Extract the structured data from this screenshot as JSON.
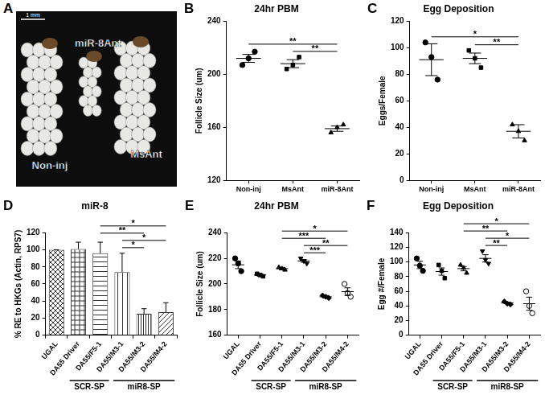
{
  "image_panel": {
    "panel": "A",
    "scale_bar": "1 mm",
    "labels": [
      "miR-8Ant",
      "Non-inj",
      "MsAnt"
    ]
  },
  "chart_data": [
    {
      "panel": "B",
      "type": "dot",
      "title": "24hr PBM",
      "y_label": "Follicle Size (um)",
      "color": "#000000",
      "categories": [
        "Non-inj",
        "MsAnt",
        "miR-8Ant"
      ],
      "series": [
        {
          "marker": "circle",
          "points": [
            207,
            212,
            217
          ],
          "value": 212,
          "error": 3
        },
        {
          "marker": "square",
          "points": [
            204,
            207,
            213
          ],
          "value": 208,
          "error": 3
        },
        {
          "marker": "triangle",
          "points": [
            156,
            160,
            162
          ],
          "value": 159,
          "error": 2
        }
      ],
      "annotations": [
        {
          "from": 0,
          "to": 2,
          "text": "**"
        },
        {
          "from": 1,
          "to": 2,
          "text": "**"
        }
      ],
      "ylim": [
        120,
        240
      ],
      "yticks": [
        120,
        160,
        200,
        240
      ],
      "grid": false
    },
    {
      "panel": "C",
      "type": "dot",
      "title": "Egg Deposition",
      "y_label": "Eggs/Female",
      "color": "#000000",
      "categories": [
        "Non-inj",
        "MsAnt",
        "miR-8Ant"
      ],
      "series": [
        {
          "marker": "circle",
          "points": [
            104,
            93,
            76
          ],
          "value": 91,
          "error": 12
        },
        {
          "marker": "square",
          "points": [
            98,
            92,
            85
          ],
          "value": 92,
          "error": 4
        },
        {
          "marker": "triangle",
          "points": [
            42,
            37,
            30
          ],
          "value": 37,
          "error": 5
        }
      ],
      "annotations": [
        {
          "from": 0,
          "to": 2,
          "text": "*"
        },
        {
          "from": 1,
          "to": 2,
          "text": "**"
        }
      ],
      "ylim": [
        0,
        120
      ],
      "yticks": [
        0,
        20,
        40,
        60,
        80,
        100,
        120
      ],
      "grid": false
    },
    {
      "panel": "D",
      "type": "bar",
      "title": "miR-8",
      "y_label": "% RE to HKGs (Actin, RPS7)",
      "categories": [
        "UGAL",
        "DA55 Driver",
        "DA55/F5-1",
        "DA55/M3-1",
        "DA55/M3-2",
        "DA55/M4-2"
      ],
      "values": [
        100,
        101,
        96,
        74,
        25,
        27
      ],
      "errors": [
        0,
        8,
        13,
        22,
        6,
        11
      ],
      "colors": [
        "#333333",
        "#333333",
        "#333333",
        "#333333",
        "#333333",
        "#333333"
      ],
      "groups": [
        {
          "label": "SCR-SP",
          "from": 1,
          "to": 2
        },
        {
          "label": "miR8-SP",
          "from": 3,
          "to": 5
        }
      ],
      "annotations": [
        {
          "from": 2,
          "to": 5,
          "text": "*"
        },
        {
          "from": 2,
          "to": 4,
          "text": "**"
        },
        {
          "from": 3,
          "to": 5,
          "text": "*"
        },
        {
          "from": 3,
          "to": 4,
          "text": "*"
        }
      ],
      "ylim": [
        0,
        120
      ],
      "yticks": [
        0,
        20,
        40,
        60,
        80,
        100,
        120
      ],
      "grid": false
    },
    {
      "panel": "E",
      "type": "dot",
      "title": "24hr PBM",
      "y_label": "Follicle Size (um)",
      "color": "#000000",
      "categories": [
        "UGAL",
        "DA55 Driver",
        "DA55/F5-1",
        "DA55/M3-1",
        "DA55/M3-2",
        "DA55/M4-2"
      ],
      "series": [
        {
          "marker": "circle",
          "points": [
            220,
            216,
            210
          ],
          "value": 215,
          "error": 3
        },
        {
          "marker": "square",
          "points": [
            208,
            207,
            206
          ],
          "value": 207,
          "error": 1
        },
        {
          "marker": "triangle",
          "points": [
            213,
            212,
            211
          ],
          "value": 212,
          "error": 1
        },
        {
          "marker": "triangle-down",
          "points": [
            220,
            218,
            216
          ],
          "value": 218,
          "error": 1
        },
        {
          "marker": "diamond",
          "points": [
            191,
            190,
            189
          ],
          "value": 190,
          "error": 1
        },
        {
          "marker": "circle-open",
          "points": [
            200,
            193,
            190
          ],
          "value": 194,
          "error": 3
        }
      ],
      "groups": [
        {
          "label": "SCR-SP",
          "from": 1,
          "to": 2
        },
        {
          "label": "miR8-SP",
          "from": 3,
          "to": 5
        }
      ],
      "annotations": [
        {
          "from": 2,
          "to": 5,
          "text": "*"
        },
        {
          "from": 2,
          "to": 4,
          "text": "***"
        },
        {
          "from": 3,
          "to": 5,
          "text": "**"
        },
        {
          "from": 3,
          "to": 4,
          "text": "***"
        }
      ],
      "ylim": [
        160,
        240
      ],
      "yticks": [
        160,
        180,
        200,
        220,
        240
      ],
      "grid": false
    },
    {
      "panel": "F",
      "type": "dot",
      "title": "Egg Deposition",
      "y_label": "Egg #/Female",
      "color": "#000000",
      "categories": [
        "UGAL",
        "DA55 Driver",
        "DA55/F5-1",
        "DA55/M3-1",
        "DA55/M3-2",
        "DA55/M4-2"
      ],
      "series": [
        {
          "marker": "circle",
          "points": [
            105,
            95,
            88
          ],
          "value": 96,
          "error": 5
        },
        {
          "marker": "square",
          "points": [
            96,
            88,
            78
          ],
          "value": 87,
          "error": 5
        },
        {
          "marker": "triangle",
          "points": [
            96,
            92,
            85
          ],
          "value": 91,
          "error": 3
        },
        {
          "marker": "triangle-down",
          "points": [
            115,
            103,
            98
          ],
          "value": 105,
          "error": 5
        },
        {
          "marker": "diamond",
          "points": [
            46,
            43,
            42
          ],
          "value": 44,
          "error": 1
        },
        {
          "marker": "circle-open",
          "points": [
            60,
            40,
            30
          ],
          "value": 43,
          "error": 9
        }
      ],
      "groups": [
        {
          "label": "SCR-SP",
          "from": 1,
          "to": 2
        },
        {
          "label": "miR8-SP",
          "from": 3,
          "to": 5
        }
      ],
      "annotations": [
        {
          "from": 2,
          "to": 5,
          "text": "*"
        },
        {
          "from": 2,
          "to": 4,
          "text": "**"
        },
        {
          "from": 3,
          "to": 5,
          "text": "*"
        },
        {
          "from": 3,
          "to": 4,
          "text": "**"
        }
      ],
      "ylim": [
        0,
        140
      ],
      "yticks": [
        0,
        20,
        40,
        60,
        80,
        100,
        120,
        140
      ],
      "grid": false
    }
  ]
}
